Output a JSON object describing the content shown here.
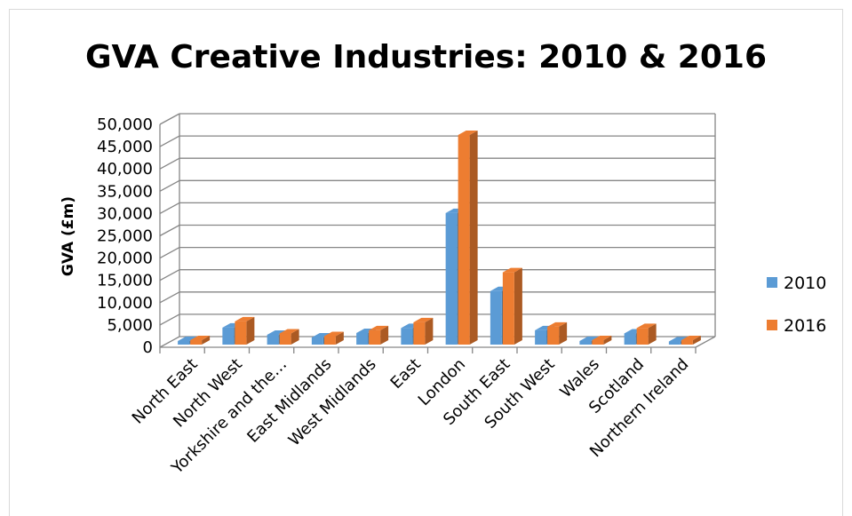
{
  "chart_data": {
    "type": "bar",
    "title": "GVA Creative Industries: 2010 & 2016",
    "xlabel": "",
    "ylabel": "GVA (£m)",
    "ylim": [
      0,
      50000
    ],
    "yticks": [
      "0",
      "5,000",
      "10,000",
      "15,000",
      "20,000",
      "25,000",
      "30,000",
      "35,000",
      "40,000",
      "45,000",
      "50,000"
    ],
    "categories": [
      "North East",
      "North West",
      "Yorkshire and the…",
      "East Midlands",
      "West Midlands",
      "East",
      "London",
      "South East",
      "South West",
      "Wales",
      "Scotland",
      "Northern Ireland"
    ],
    "series": [
      {
        "name": "2010",
        "color": "#5b9bd5",
        "values": [
          800,
          3800,
          2200,
          1600,
          2600,
          3700,
          29500,
          12000,
          3200,
          800,
          2500,
          700
        ]
      },
      {
        "name": "2016",
        "color": "#ed7d31",
        "values": [
          1000,
          5200,
          2500,
          1900,
          3200,
          5000,
          47000,
          16200,
          4000,
          1000,
          3700,
          1000
        ]
      }
    ],
    "grid": true,
    "legend": "right",
    "style": "3d-clustered-column"
  }
}
